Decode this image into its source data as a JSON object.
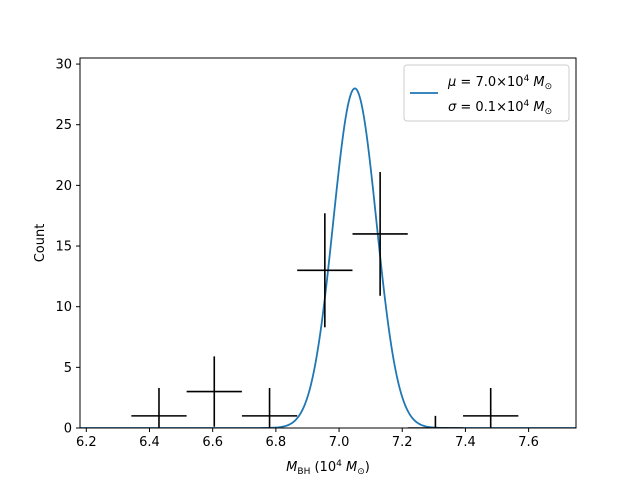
{
  "chart_data": {
    "type": "scatter",
    "title": "",
    "xlabel": "M_BH (10^4 M_sun)",
    "xlabel_parts": {
      "symbol": "M",
      "subscript": "BH",
      "open": " (10",
      "exp": "4",
      "unit": " M",
      "unit_sub": "⊙",
      "close": ")"
    },
    "ylabel": "Count",
    "xlim": [
      6.18,
      7.75
    ],
    "ylim": [
      0,
      30.5
    ],
    "xticks": [
      6.2,
      6.4,
      6.6,
      6.8,
      7.0,
      7.2,
      7.4,
      7.6
    ],
    "xtick_labels": [
      "6.2",
      "6.4",
      "6.6",
      "6.8",
      "7.0",
      "7.2",
      "7.4",
      "7.6"
    ],
    "yticks": [
      0,
      5,
      10,
      15,
      20,
      25,
      30
    ],
    "ytick_labels": [
      "0",
      "5",
      "10",
      "15",
      "20",
      "25",
      "30"
    ],
    "grid": false,
    "legend_position": "top-right",
    "histogram_points": {
      "x": [
        6.43,
        6.605,
        6.78,
        6.955,
        7.13,
        7.305,
        7.48
      ],
      "y": [
        1,
        3,
        1,
        13,
        16,
        0,
        1
      ],
      "x_halfwidth": 0.0875,
      "y_err": [
        2.3,
        2.9,
        2.3,
        4.7,
        5.1,
        1.0,
        2.3
      ],
      "color": "#000000"
    },
    "gaussian_fit": {
      "mu": 7.05,
      "sigma": 0.0685,
      "amplitude": 28.0,
      "color": "#1f77b4",
      "legend": {
        "line1_sym": "μ",
        "line1_val": " = 7.0×10",
        "line1_exp": "4",
        "line1_unit": " M",
        "line1_sub": "⊙",
        "line2_sym": "σ",
        "line2_val": " = 0.1×10",
        "line2_exp": "4",
        "line2_unit": " M",
        "line2_sub": "⊙"
      }
    }
  }
}
